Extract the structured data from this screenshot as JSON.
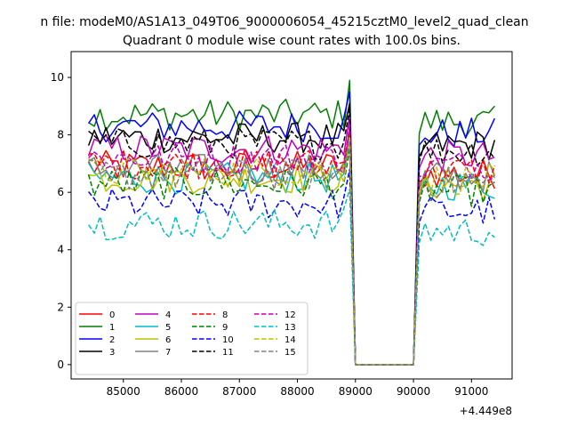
{
  "chart_data": {
    "type": "line",
    "suptitle": "n file: modeM0/AS1A13_049T06_9000006054_45215cztM0_level2_quad_clean",
    "title": "Quadrant 0 module wise count rates with 100.0s bins.",
    "xlabel": "",
    "ylabel": "",
    "x_offset_label": "+4.449e8",
    "xlim": [
      84100,
      91700
    ],
    "ylim": [
      -0.5,
      10.9
    ],
    "x_ticks": [
      85000,
      86000,
      87000,
      88000,
      89000,
      90000,
      91000
    ],
    "y_ticks": [
      0,
      2,
      4,
      6,
      8,
      10
    ],
    "x": [
      84400,
      84500,
      84600,
      84700,
      84800,
      84900,
      85000,
      85100,
      85200,
      85300,
      85400,
      85500,
      85600,
      85700,
      85800,
      85900,
      86000,
      86100,
      86200,
      86300,
      86400,
      86500,
      86600,
      86700,
      86800,
      86900,
      87000,
      87100,
      87200,
      87300,
      87400,
      87500,
      87600,
      87700,
      87800,
      87900,
      88000,
      88100,
      88200,
      88300,
      88400,
      88500,
      88600,
      88700,
      88800,
      88900,
      89000,
      89100,
      89200,
      89300,
      89400,
      89500,
      89600,
      89700,
      89800,
      89900,
      90000,
      90100,
      90200,
      90300,
      90400,
      90500,
      90600,
      90700,
      90800,
      90900,
      91000,
      91100,
      91200,
      91300,
      91400
    ],
    "gap_start_index": 46,
    "gap_end_index": 56,
    "grid": false,
    "legend": {
      "placement": "lower-left",
      "columns": 4
    },
    "series": [
      {
        "name": "0",
        "color": "#ff0000",
        "dash": "solid",
        "level": 6.9
      },
      {
        "name": "1",
        "color": "#008000",
        "dash": "solid",
        "level": 8.7
      },
      {
        "name": "2",
        "color": "#0000ff",
        "dash": "solid",
        "level": 8.3
      },
      {
        "name": "3",
        "color": "#000000",
        "dash": "solid",
        "level": 7.9
      },
      {
        "name": "4",
        "color": "#bf00bf",
        "dash": "solid",
        "level": 7.5
      },
      {
        "name": "5",
        "color": "#00bfbf",
        "dash": "solid",
        "level": 6.5
      },
      {
        "name": "6",
        "color": "#bfbf00",
        "dash": "solid",
        "level": 6.5
      },
      {
        "name": "7",
        "color": "#808080",
        "dash": "solid",
        "level": 6.8
      },
      {
        "name": "8",
        "color": "#ff0000",
        "dash": "dashed",
        "level": 7.0
      },
      {
        "name": "9",
        "color": "#008000",
        "dash": "dashed",
        "level": 6.3
      },
      {
        "name": "10",
        "color": "#0000ff",
        "dash": "dashed",
        "level": 5.6
      },
      {
        "name": "11",
        "color": "#000000",
        "dash": "dashed",
        "level": 7.7
      },
      {
        "name": "12",
        "color": "#bf00bf",
        "dash": "dashed",
        "level": 7.2
      },
      {
        "name": "13",
        "color": "#00bfbf",
        "dash": "dashed",
        "level": 4.9
      },
      {
        "name": "14",
        "color": "#bfbf00",
        "dash": "dashed",
        "level": 6.7
      },
      {
        "name": "15",
        "color": "#808080",
        "dash": "dashed",
        "level": 6.6
      }
    ]
  }
}
